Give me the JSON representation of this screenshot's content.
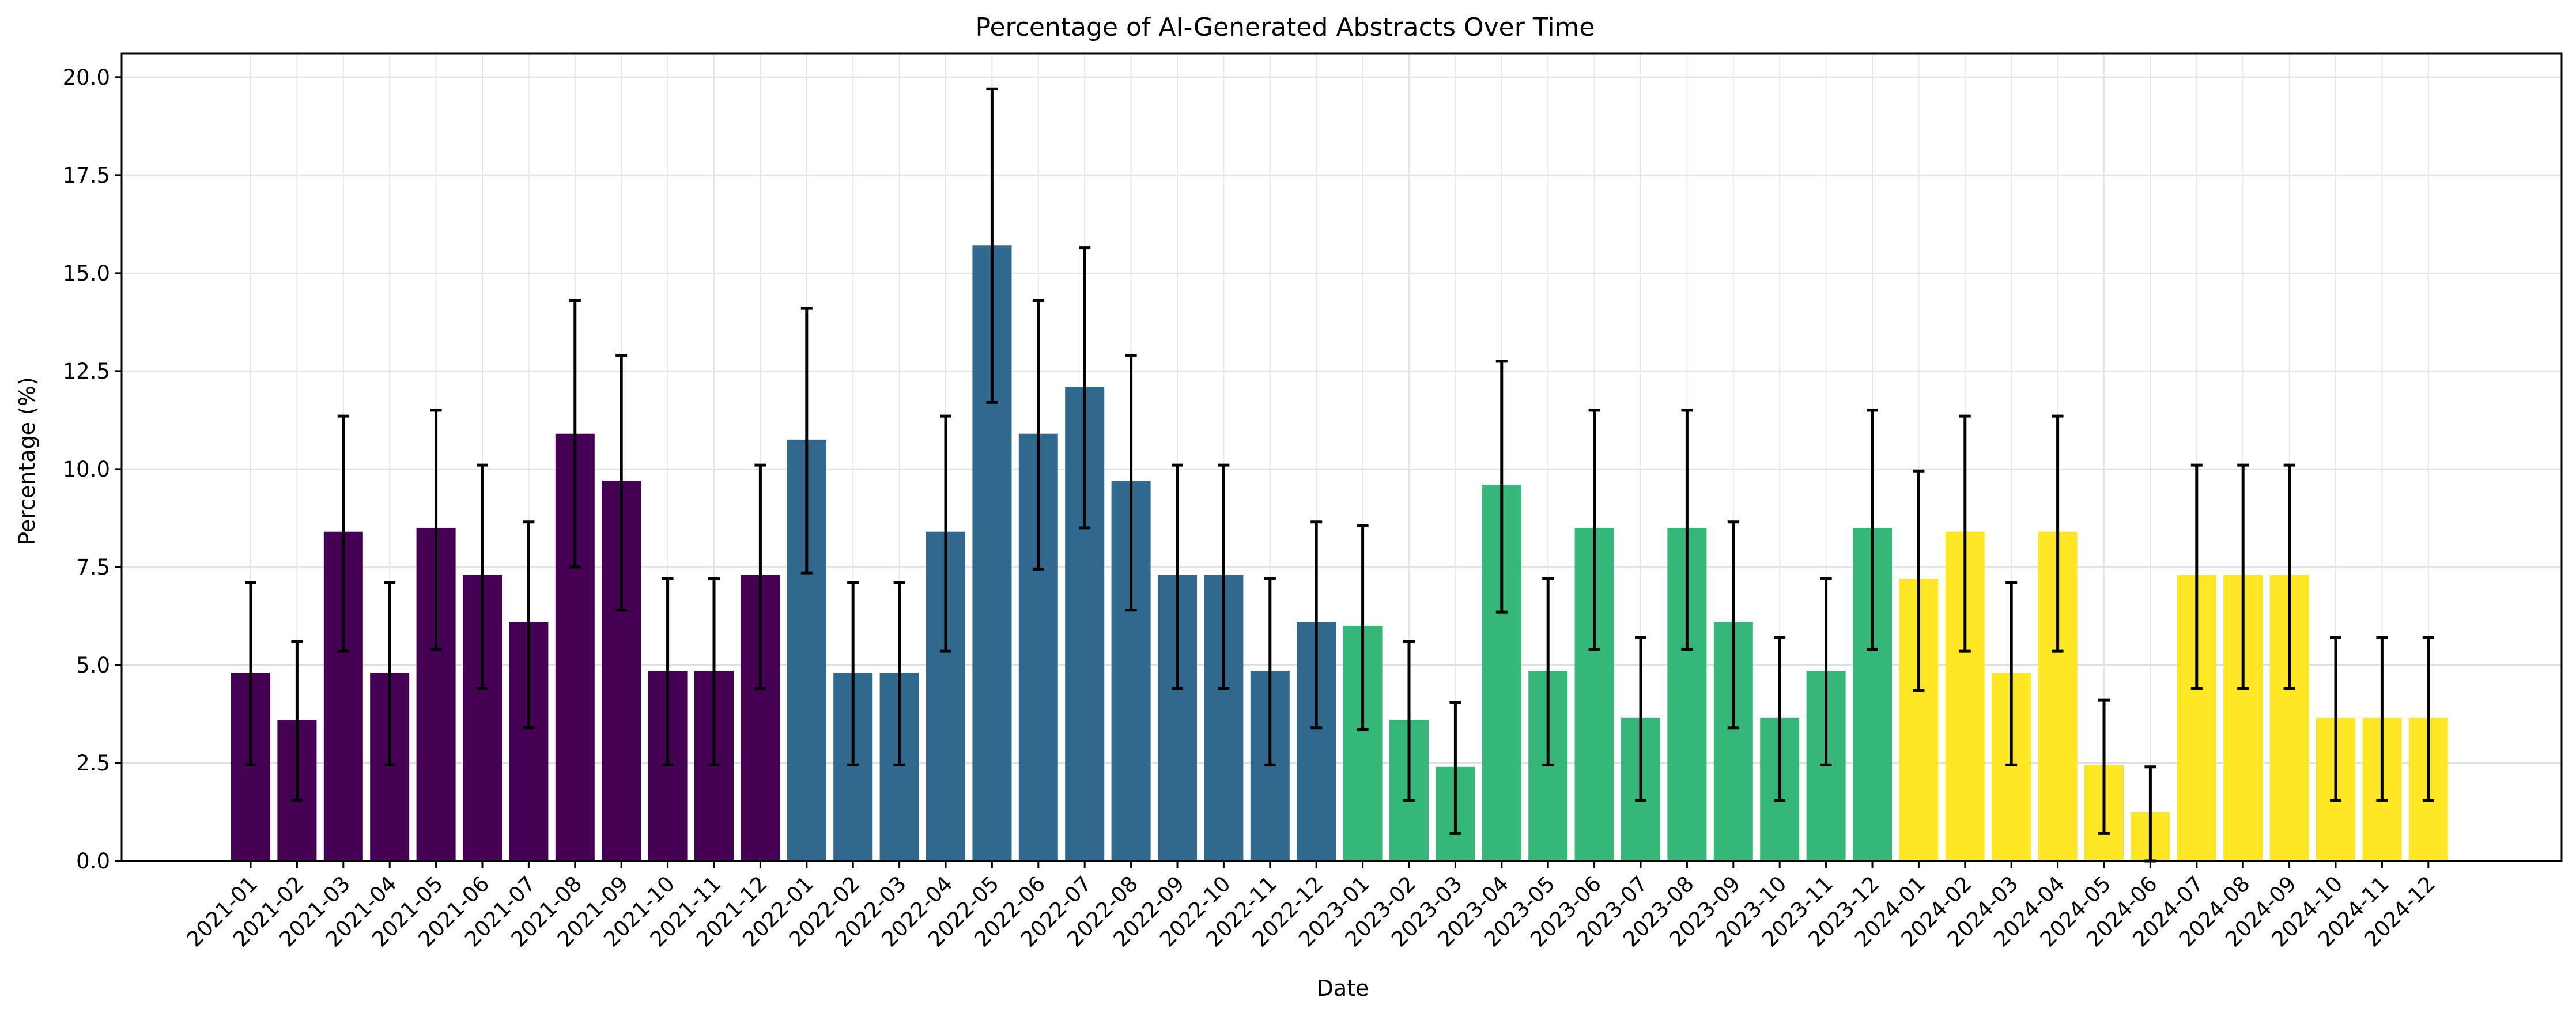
{
  "chart_data": {
    "type": "bar",
    "title": "Percentage of AI-Generated Abstracts Over Time",
    "xlabel": "Date",
    "ylabel": "Percentage (%)",
    "ylim": [
      0,
      20.6
    ],
    "yticks": [
      "0.0",
      "2.5",
      "5.0",
      "7.5",
      "10.0",
      "12.5",
      "15.0",
      "17.5",
      "20.0"
    ],
    "grid": true,
    "categories": [
      "2021-01",
      "2021-02",
      "2021-03",
      "2021-04",
      "2021-05",
      "2021-06",
      "2021-07",
      "2021-08",
      "2021-09",
      "2021-10",
      "2021-11",
      "2021-12",
      "2022-01",
      "2022-02",
      "2022-03",
      "2022-04",
      "2022-05",
      "2022-06",
      "2022-07",
      "2022-08",
      "2022-09",
      "2022-10",
      "2022-11",
      "2022-12",
      "2023-01",
      "2023-02",
      "2023-03",
      "2023-04",
      "2023-05",
      "2023-06",
      "2023-07",
      "2023-08",
      "2023-09",
      "2023-10",
      "2023-11",
      "2023-12",
      "2024-01",
      "2024-02",
      "2024-03",
      "2024-04",
      "2024-05",
      "2024-06",
      "2024-07",
      "2024-08",
      "2024-09",
      "2024-10",
      "2024-11",
      "2024-12"
    ],
    "values": [
      4.8,
      3.6,
      8.4,
      4.8,
      8.5,
      7.3,
      6.1,
      10.9,
      9.7,
      4.85,
      4.85,
      7.3,
      10.75,
      4.8,
      4.8,
      8.4,
      15.7,
      10.9,
      12.1,
      9.7,
      7.3,
      7.3,
      4.85,
      6.1,
      6.0,
      3.6,
      2.4,
      9.6,
      4.85,
      8.5,
      3.65,
      8.5,
      6.1,
      3.65,
      4.85,
      8.5,
      7.2,
      8.4,
      4.8,
      8.4,
      2.45,
      1.25,
      7.3,
      7.3,
      7.3,
      3.65,
      3.65,
      3.65
    ],
    "err_low": [
      2.45,
      1.55,
      5.35,
      2.45,
      5.4,
      4.4,
      3.4,
      7.5,
      6.4,
      2.45,
      2.45,
      4.4,
      7.35,
      2.45,
      2.45,
      5.35,
      11.7,
      7.45,
      8.5,
      6.4,
      4.4,
      4.4,
      2.45,
      3.4,
      3.35,
      1.55,
      0.7,
      6.35,
      2.45,
      5.4,
      1.55,
      5.4,
      3.4,
      1.55,
      2.45,
      5.4,
      4.35,
      5.35,
      2.45,
      5.35,
      0.7,
      0.0,
      4.4,
      4.4,
      4.4,
      1.55,
      1.55,
      1.55
    ],
    "err_high": [
      7.1,
      5.6,
      11.35,
      7.1,
      11.5,
      10.1,
      8.65,
      14.3,
      12.9,
      7.2,
      7.2,
      10.1,
      14.1,
      7.1,
      7.1,
      11.35,
      19.7,
      14.3,
      15.65,
      12.9,
      10.1,
      10.1,
      7.2,
      8.65,
      8.55,
      5.6,
      4.05,
      12.75,
      7.2,
      11.5,
      5.7,
      11.5,
      8.65,
      5.7,
      7.2,
      11.5,
      9.95,
      11.35,
      7.1,
      11.35,
      4.1,
      2.4,
      10.1,
      10.1,
      10.1,
      5.7,
      5.7,
      5.7
    ],
    "colors_by_year": {
      "2021": "#440154",
      "2022": "#31688e",
      "2023": "#35b779",
      "2024": "#fde725"
    }
  }
}
